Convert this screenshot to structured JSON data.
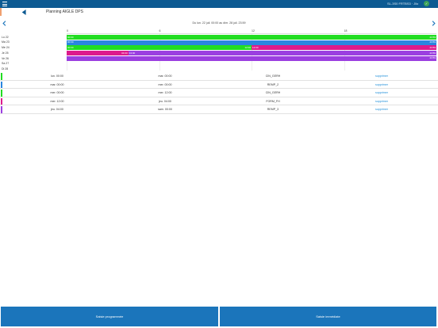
{
  "topbar": {
    "user_text": "SL-3S0 FRTBS3 · Jllo"
  },
  "header": {
    "title": "Planning AIGLE DPS"
  },
  "date_range": "Du lun. 22 juil. 00:00 au dim. 28 juil. 23:59",
  "gantt": {
    "hour_ticks": [
      "0",
      "6",
      "12",
      "18"
    ],
    "days": [
      "Lu 22",
      "Ma 23",
      "Me 24",
      "Je 25",
      "Ve 26",
      "Sa 27",
      "Di 28"
    ],
    "bars": [
      {
        "day": 0,
        "start": 0,
        "end": 24,
        "color": "#22dd22",
        "start_label": "00:00",
        "end_label": "23:59"
      },
      {
        "day": 1,
        "start": 0,
        "end": 24,
        "color": "#2a86e0",
        "start_label": "00:00",
        "end_label": "23:59"
      },
      {
        "day": 2,
        "start": 0,
        "end": 12,
        "color": "#22dd22",
        "start_label": "00:00",
        "end_label": "12:00"
      },
      {
        "day": 2,
        "start": 12,
        "end": 24,
        "color": "#dd1a8c",
        "start_label": "12:00",
        "end_label": "23:59"
      },
      {
        "day": 3,
        "start": 0,
        "end": 4,
        "color": "#dd1a8c",
        "start_label": "",
        "end_label": "04:00"
      },
      {
        "day": 3,
        "start": 4,
        "end": 24,
        "color": "#9b3fe0",
        "start_label": "04:00",
        "end_label": "23:59"
      },
      {
        "day": 4,
        "start": 0,
        "end": 24,
        "color": "#9b3fe0",
        "start_label": "",
        "end_label": "23:59"
      }
    ]
  },
  "rows": [
    {
      "color": "#22dd22",
      "start": "lun. 00:00",
      "end": "mar. 00:00",
      "name": "CIN_GERH",
      "action": "supprimer"
    },
    {
      "color": "#2a86e0",
      "start": "mar. 00:00",
      "end": "mer. 00:00",
      "name": "REMP_2",
      "action": "supprimer"
    },
    {
      "color": "#22dd22",
      "start": "mer. 00:00",
      "end": "mer. 12:00",
      "name": "CIN_GERH",
      "action": "supprimer"
    },
    {
      "color": "#dd1a8c",
      "start": "mer. 12:00",
      "end": "jeu. 04:00",
      "name": "FORM_FH",
      "action": "supprimer"
    },
    {
      "color": "#9b3fe0",
      "start": "jeu. 04:00",
      "end": "sam. 00:00",
      "name": "REMP_3",
      "action": "supprimer"
    }
  ],
  "footer": {
    "primary_label": "Saisie programmée",
    "secondary_label": "Saisie immédiate"
  }
}
